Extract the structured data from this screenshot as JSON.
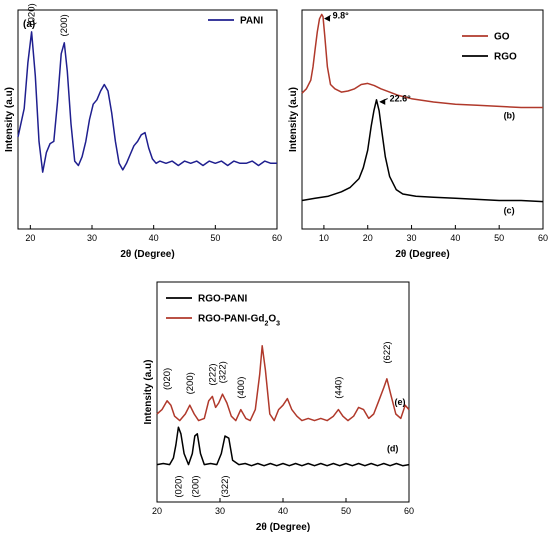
{
  "colors": {
    "pani": "#1f1f8f",
    "go": "#b0392b",
    "rgo": "#000000",
    "rgo_pani": "#000000",
    "rgo_pani_gd": "#b0392b"
  },
  "chart_data": [
    {
      "id": "a",
      "type": "line",
      "panel_label": "(a)",
      "xlabel": "2θ (Degree)",
      "ylabel": "Intensity (a.u)",
      "xlim": [
        18,
        60
      ],
      "ylim": [
        0,
        1
      ],
      "xticks": [
        20,
        30,
        40,
        50,
        60
      ],
      "yticks_shown": false,
      "legend_position": "top-right",
      "series": [
        {
          "name": "PANI",
          "color_key": "pani",
          "x": [
            18,
            19,
            19.6,
            20.2,
            20.8,
            21.4,
            22,
            22.6,
            23.2,
            23.8,
            24.4,
            25,
            25.5,
            26,
            26.6,
            27.2,
            27.8,
            28.4,
            29,
            29.6,
            30.2,
            30.8,
            31.4,
            32,
            32.6,
            33.2,
            33.8,
            34.4,
            35,
            35.6,
            36.2,
            36.8,
            37.4,
            38,
            38.6,
            39.2,
            39.8,
            40.4,
            41,
            42,
            43,
            44,
            45,
            46,
            47,
            48,
            49,
            50,
            51,
            52,
            53,
            54,
            55,
            56,
            57,
            58,
            59,
            60
          ],
          "y": [
            0.42,
            0.55,
            0.76,
            0.9,
            0.7,
            0.4,
            0.26,
            0.35,
            0.39,
            0.4,
            0.58,
            0.8,
            0.85,
            0.72,
            0.48,
            0.31,
            0.29,
            0.33,
            0.4,
            0.5,
            0.57,
            0.59,
            0.63,
            0.66,
            0.63,
            0.53,
            0.4,
            0.3,
            0.27,
            0.3,
            0.34,
            0.38,
            0.4,
            0.43,
            0.44,
            0.37,
            0.32,
            0.3,
            0.31,
            0.3,
            0.31,
            0.29,
            0.31,
            0.3,
            0.31,
            0.29,
            0.31,
            0.3,
            0.31,
            0.29,
            0.31,
            0.3,
            0.3,
            0.31,
            0.29,
            0.31,
            0.3,
            0.3
          ]
        }
      ],
      "annotations": [
        {
          "text": "(020)",
          "x": 20.2,
          "y": 0.92,
          "rotate": true
        },
        {
          "text": "(200)",
          "x": 25.5,
          "y": 0.87,
          "rotate": true
        }
      ]
    },
    {
      "id": "bc",
      "type": "line",
      "xlabel": "2θ (Degree)",
      "ylabel": "Intensity (a.u)",
      "xlim": [
        5,
        60
      ],
      "ylim": [
        0,
        1
      ],
      "xticks": [
        10,
        20,
        30,
        40,
        50,
        60
      ],
      "yticks_shown": false,
      "legend_position": "top-right",
      "series": [
        {
          "name": "GO",
          "color_key": "go",
          "x": [
            5,
            6,
            7,
            7.5,
            8,
            8.5,
            9,
            9.5,
            9.8,
            10.2,
            10.8,
            11.5,
            12.5,
            14,
            15.5,
            17,
            18.5,
            20,
            21.5,
            23,
            25,
            27,
            30,
            35,
            40,
            45,
            50,
            55,
            60
          ],
          "y": [
            0.62,
            0.64,
            0.68,
            0.74,
            0.82,
            0.9,
            0.96,
            0.98,
            0.97,
            0.88,
            0.74,
            0.66,
            0.64,
            0.625,
            0.63,
            0.64,
            0.66,
            0.665,
            0.655,
            0.64,
            0.625,
            0.61,
            0.595,
            0.58,
            0.57,
            0.565,
            0.56,
            0.555,
            0.555
          ]
        },
        {
          "name": "RGO",
          "color_key": "rgo",
          "x": [
            5,
            8,
            11,
            14,
            16,
            18,
            19,
            20,
            20.8,
            21.4,
            22,
            22.6,
            23.2,
            24,
            25,
            26.5,
            28,
            31,
            35,
            40,
            45,
            50,
            55,
            60
          ],
          "y": [
            0.13,
            0.14,
            0.15,
            0.17,
            0.19,
            0.23,
            0.28,
            0.36,
            0.47,
            0.54,
            0.59,
            0.54,
            0.45,
            0.33,
            0.24,
            0.18,
            0.16,
            0.15,
            0.145,
            0.14,
            0.135,
            0.13,
            0.13,
            0.125
          ]
        }
      ],
      "annotations": [
        {
          "text": "9.8°",
          "x": 12.0,
          "y": 0.98,
          "arrow_to_x": 9.8,
          "arrow_to_y": 0.965
        },
        {
          "text": "22.6°",
          "x": 25.0,
          "y": 0.6,
          "arrow_to_x": 22.4,
          "arrow_to_y": 0.585
        }
      ],
      "panel_tags": [
        {
          "text": "(b)",
          "x": 51,
          "y": 0.505
        },
        {
          "text": "(c)",
          "x": 51,
          "y": 0.07
        }
      ]
    },
    {
      "id": "de",
      "type": "line",
      "xlabel": "2θ (Degree)",
      "ylabel": "Intensity (a.u)",
      "xlim": [
        20,
        60
      ],
      "ylim": [
        0,
        1
      ],
      "xticks": [
        20,
        30,
        40,
        50,
        60
      ],
      "yticks_shown": false,
      "legend_position": "top-left",
      "series": [
        {
          "name": "RGO-PANI",
          "color_key": "rgo_pani",
          "x": [
            20,
            21,
            22,
            22.6,
            23,
            23.4,
            23.8,
            24.3,
            25,
            25.6,
            26,
            26.4,
            26.9,
            27.5,
            28.5,
            29.5,
            30.2,
            30.8,
            31.4,
            32,
            33,
            34,
            35,
            36,
            37,
            38,
            39,
            40,
            41,
            42,
            43,
            44,
            45,
            46,
            47,
            48,
            49,
            50,
            51,
            52,
            53,
            54,
            55,
            56,
            57,
            58,
            59,
            60
          ],
          "y": [
            0.17,
            0.175,
            0.17,
            0.2,
            0.26,
            0.34,
            0.31,
            0.22,
            0.17,
            0.22,
            0.3,
            0.31,
            0.22,
            0.17,
            0.175,
            0.17,
            0.22,
            0.3,
            0.29,
            0.19,
            0.17,
            0.175,
            0.165,
            0.175,
            0.165,
            0.175,
            0.165,
            0.175,
            0.165,
            0.175,
            0.165,
            0.175,
            0.165,
            0.175,
            0.165,
            0.175,
            0.165,
            0.175,
            0.165,
            0.175,
            0.165,
            0.175,
            0.165,
            0.175,
            0.165,
            0.175,
            0.165,
            0.17
          ]
        },
        {
          "name": "RGO-PANI-Gd2O3",
          "color_key": "rgo_pani_gd",
          "x": [
            20,
            20.8,
            21.6,
            22.2,
            22.8,
            23.6,
            24.5,
            25.2,
            25.9,
            26.6,
            27.5,
            28.2,
            28.8,
            29.3,
            29.8,
            30.4,
            31.1,
            31.8,
            32.5,
            33.3,
            34.1,
            34.8,
            35.6,
            36.3,
            36.7,
            37.2,
            37.9,
            38.6,
            39.3,
            40,
            40.7,
            41.4,
            42.2,
            43,
            44,
            45,
            46,
            47,
            48,
            48.8,
            49.5,
            50.3,
            51.2,
            52,
            52.8,
            53.6,
            54.4,
            55.2,
            56,
            56.5,
            57.1,
            57.9,
            58.7,
            59.4,
            60
          ],
          "y": [
            0.4,
            0.42,
            0.46,
            0.44,
            0.39,
            0.37,
            0.4,
            0.44,
            0.4,
            0.37,
            0.38,
            0.46,
            0.48,
            0.43,
            0.45,
            0.49,
            0.45,
            0.39,
            0.37,
            0.42,
            0.38,
            0.37,
            0.42,
            0.58,
            0.71,
            0.6,
            0.4,
            0.37,
            0.42,
            0.44,
            0.47,
            0.42,
            0.39,
            0.37,
            0.38,
            0.37,
            0.38,
            0.37,
            0.39,
            0.42,
            0.39,
            0.37,
            0.39,
            0.43,
            0.42,
            0.38,
            0.4,
            0.46,
            0.52,
            0.56,
            0.49,
            0.4,
            0.38,
            0.44,
            0.42
          ]
        }
      ],
      "annotations": [
        {
          "text": "(020)",
          "x": 21.6,
          "y": 0.5,
          "rotate": true
        },
        {
          "text": "(200)",
          "x": 25.2,
          "y": 0.48,
          "rotate": true
        },
        {
          "text": "(222)",
          "x": 28.8,
          "y": 0.52,
          "rotate": true
        },
        {
          "text": "(322)",
          "x": 30.4,
          "y": 0.53,
          "rotate": true
        },
        {
          "text": "(400)",
          "x": 33.3,
          "y": 0.46,
          "rotate": true
        },
        {
          "text": "(440)",
          "x": 48.8,
          "y": 0.46,
          "rotate": true
        },
        {
          "text": "(622)",
          "x": 56.5,
          "y": 0.62,
          "rotate": true
        },
        {
          "text": "(020)",
          "x": 23.4,
          "y": 0.13,
          "rotate": true,
          "below": true
        },
        {
          "text": "(200)",
          "x": 26.1,
          "y": 0.13,
          "rotate": true,
          "below": true
        },
        {
          "text": "(322)",
          "x": 30.8,
          "y": 0.13,
          "rotate": true,
          "below": true
        }
      ],
      "panel_tags": [
        {
          "text": "(e)",
          "x": 57.7,
          "y": 0.44
        },
        {
          "text": "(d)",
          "x": 56.5,
          "y": 0.23
        }
      ]
    }
  ]
}
